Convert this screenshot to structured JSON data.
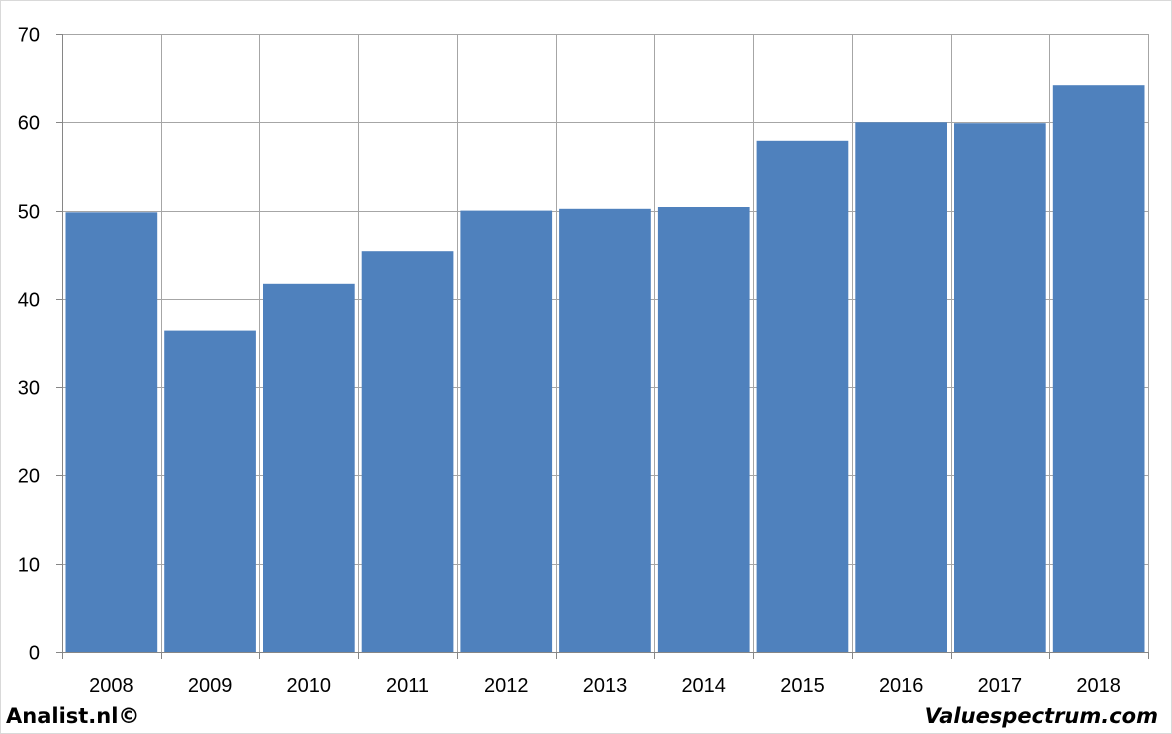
{
  "chart_data": {
    "type": "bar",
    "categories": [
      "2008",
      "2009",
      "2010",
      "2011",
      "2012",
      "2013",
      "2014",
      "2015",
      "2016",
      "2017",
      "2018"
    ],
    "values": [
      49.8,
      36.4,
      41.7,
      45.4,
      50.0,
      50.2,
      50.4,
      57.9,
      60.0,
      59.9,
      64.2
    ],
    "ylim": [
      0,
      70
    ],
    "yticks": [
      0,
      10,
      20,
      30,
      40,
      50,
      60,
      70
    ],
    "grid": true,
    "bar_color": "#4f81bd",
    "grid_color": "#a6a6a6"
  },
  "footer": {
    "left": "Analist.nl©",
    "right": "Valuespectrum.com"
  }
}
